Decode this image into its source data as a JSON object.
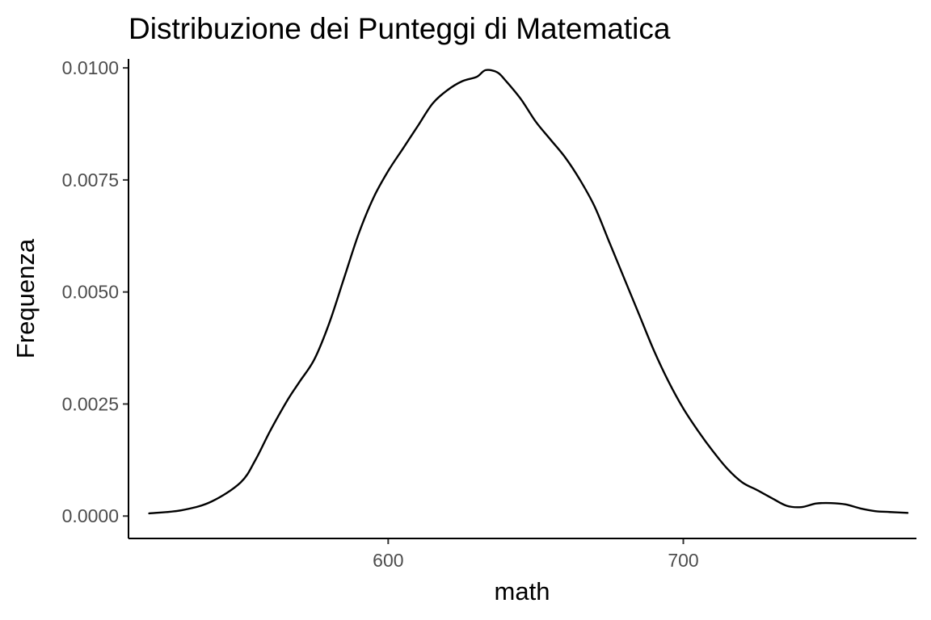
{
  "chart_data": {
    "type": "line",
    "title": "Distribuzione dei Punteggi di Matematica",
    "xlabel": "math",
    "ylabel": "Frequenza",
    "xlim": [
      512,
      779
    ],
    "ylim": [
      -0.0005,
      0.0102
    ],
    "x_ticks": [
      600,
      700
    ],
    "x_tick_labels": [
      "600",
      "700"
    ],
    "y_ticks": [
      0,
      0.0025,
      0.005,
      0.0075,
      0.01
    ],
    "y_tick_labels": [
      "0.0000",
      "0.0025",
      "0.0050",
      "0.0075",
      "0.0100"
    ],
    "grid": false,
    "legend": "none",
    "series": [
      {
        "color": "#000000",
        "x": [
          519,
          530,
          540,
          550,
          555,
          560,
          566,
          570,
          575,
          580,
          585,
          590,
          595,
          600,
          605,
          610,
          615,
          620,
          625,
          630,
          633,
          637,
          640,
          645,
          650,
          655,
          660,
          665,
          670,
          675,
          680,
          685,
          690,
          695,
          700,
          705,
          710,
          715,
          720,
          725,
          730,
          735,
          740,
          745,
          750,
          755,
          760,
          765,
          770,
          776
        ],
        "y": [
          6e-05,
          0.00013,
          0.00032,
          0.00075,
          0.00125,
          0.0019,
          0.0026,
          0.003,
          0.0035,
          0.0043,
          0.0053,
          0.0063,
          0.0071,
          0.0077,
          0.0082,
          0.0087,
          0.0092,
          0.0095,
          0.0097,
          0.0098,
          0.00995,
          0.0099,
          0.0097,
          0.0093,
          0.0088,
          0.0084,
          0.008,
          0.0075,
          0.0069,
          0.0061,
          0.0053,
          0.0045,
          0.0037,
          0.003,
          0.0024,
          0.0019,
          0.00145,
          0.00105,
          0.00075,
          0.00058,
          0.0004,
          0.00023,
          0.0002,
          0.00028,
          0.00029,
          0.00026,
          0.00017,
          0.00011,
          9e-05,
          7e-05
        ]
      }
    ]
  }
}
